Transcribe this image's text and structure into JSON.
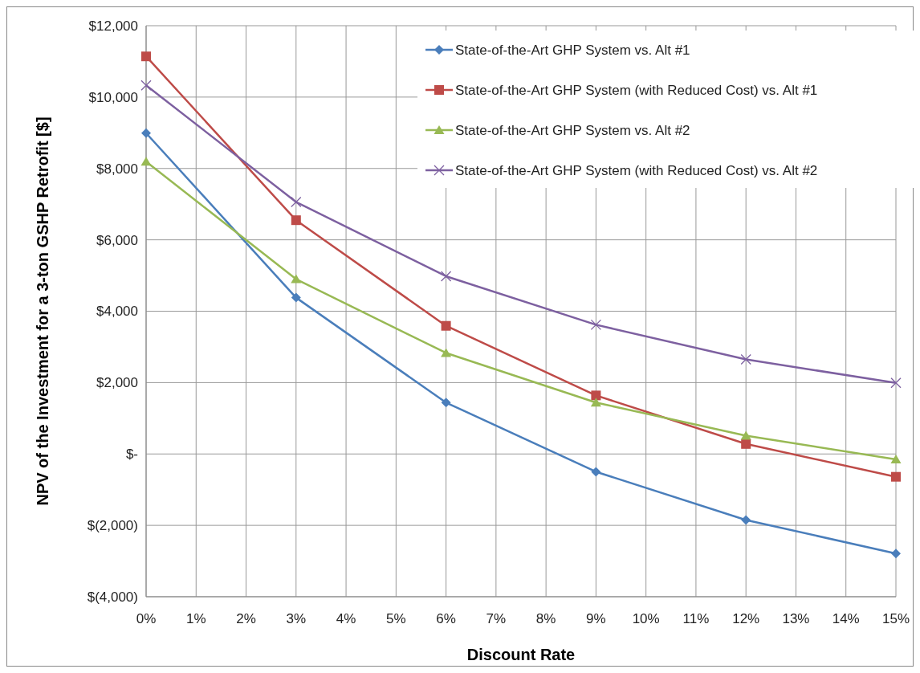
{
  "chart_data": {
    "type": "line",
    "xlabel": "Discount Rate",
    "ylabel": "NPV of the Investment for a 3-ton GSHP Retrofit [$]",
    "x": [
      0,
      3,
      6,
      9,
      12,
      15
    ],
    "xlim": [
      0,
      15
    ],
    "xticks": [
      {
        "value": 0,
        "label": "0%"
      },
      {
        "value": 1,
        "label": "1%"
      },
      {
        "value": 2,
        "label": "2%"
      },
      {
        "value": 3,
        "label": "3%"
      },
      {
        "value": 4,
        "label": "4%"
      },
      {
        "value": 5,
        "label": "5%"
      },
      {
        "value": 6,
        "label": "6%"
      },
      {
        "value": 7,
        "label": "7%"
      },
      {
        "value": 8,
        "label": "8%"
      },
      {
        "value": 9,
        "label": "9%"
      },
      {
        "value": 10,
        "label": "10%"
      },
      {
        "value": 11,
        "label": "11%"
      },
      {
        "value": 12,
        "label": "12%"
      },
      {
        "value": 13,
        "label": "13%"
      },
      {
        "value": 14,
        "label": "14%"
      },
      {
        "value": 15,
        "label": "15%"
      }
    ],
    "ylim": [
      -4000,
      12000
    ],
    "yticks": [
      {
        "value": -4000,
        "label": "$(4,000)"
      },
      {
        "value": -2000,
        "label": "$(2,000)"
      },
      {
        "value": 0,
        "label": "$-"
      },
      {
        "value": 2000,
        "label": "$2,000"
      },
      {
        "value": 4000,
        "label": "$4,000"
      },
      {
        "value": 6000,
        "label": "$6,000"
      },
      {
        "value": 8000,
        "label": "$8,000"
      },
      {
        "value": 10000,
        "label": "$10,000"
      },
      {
        "value": 12000,
        "label": "$12,000"
      }
    ],
    "grid": true,
    "legend": "top right",
    "series": [
      {
        "name": "State-of-the-Art GHP System vs. Alt #1",
        "color": "#4a7ebb",
        "marker": "diamond",
        "values": [
          8990,
          4380,
          1440,
          -500,
          -1850,
          -2790
        ]
      },
      {
        "name": "State-of-the-Art GHP System (with Reduced Cost) vs. Alt #1",
        "color": "#be4b48",
        "marker": "square",
        "values": [
          11140,
          6550,
          3590,
          1640,
          280,
          -640
        ]
      },
      {
        "name": "State-of-the-Art GHP System vs. Alt #2",
        "color": "#98b954",
        "marker": "triangle",
        "values": [
          8190,
          4900,
          2830,
          1440,
          510,
          -150
        ]
      },
      {
        "name": "State-of-the-Art GHP System (with Reduced Cost) vs. Alt #2",
        "color": "#7d60a0",
        "marker": "cross",
        "values": [
          10330,
          7060,
          4980,
          3620,
          2650,
          1990
        ]
      }
    ]
  }
}
